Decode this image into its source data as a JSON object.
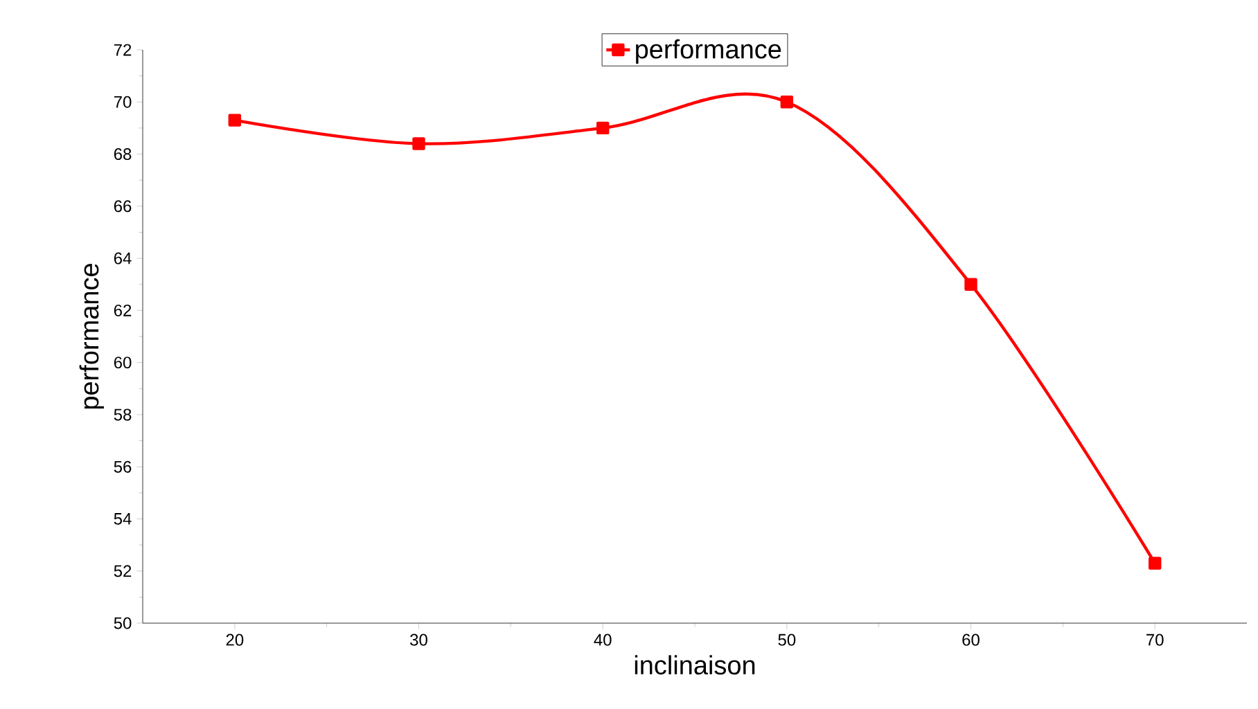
{
  "chart_data": {
    "type": "line",
    "xlabel": "inclinaison",
    "ylabel": "performance",
    "x": [
      20,
      30,
      40,
      50,
      60,
      70
    ],
    "series": [
      {
        "name": "performance",
        "color": "#ff0000",
        "values": [
          69.3,
          68.4,
          69.0,
          70.0,
          63.0,
          52.3
        ]
      }
    ],
    "xlim": [
      15,
      75
    ],
    "ylim": [
      50,
      72
    ],
    "xticks": [
      20,
      30,
      40,
      50,
      60,
      70
    ],
    "yticks": [
      50,
      52,
      54,
      56,
      58,
      60,
      62,
      64,
      66,
      68,
      70,
      72
    ],
    "marker": "square",
    "legend": "top"
  }
}
